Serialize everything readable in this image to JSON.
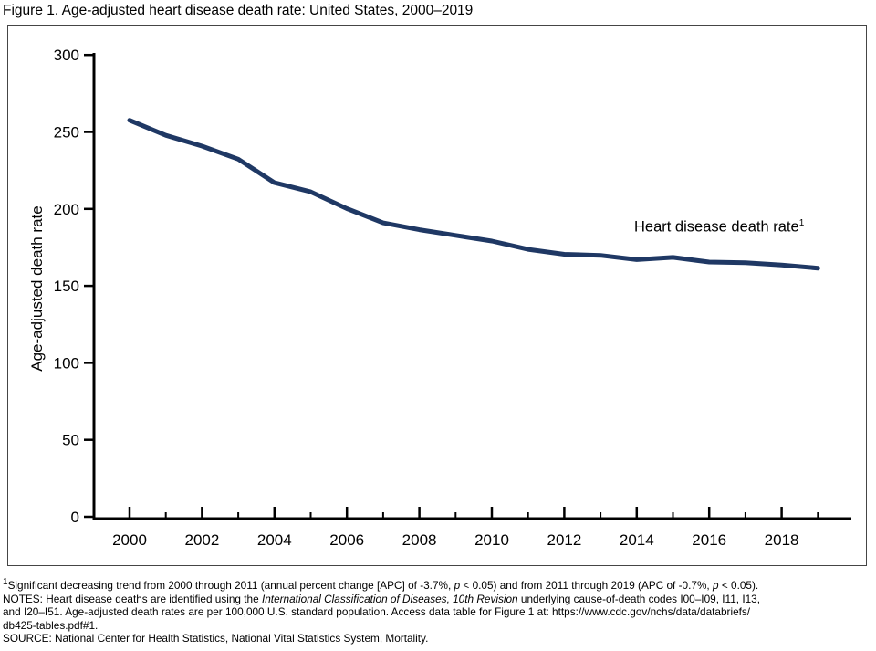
{
  "chart_data": {
    "type": "line",
    "title": "Figure 1. Age-adjusted heart disease death rate: United States, 2000–2019",
    "xlabel": "",
    "ylabel": "Age-adjusted death rate",
    "xlim": [
      2000,
      2019
    ],
    "ylim": [
      0,
      300
    ],
    "grid": false,
    "legend_position": "none",
    "y_ticks": [
      0,
      50,
      100,
      150,
      200,
      250,
      300
    ],
    "x_major_ticks": [
      2000,
      2002,
      2004,
      2006,
      2008,
      2010,
      2012,
      2014,
      2016,
      2018
    ],
    "x_minor_ticks": [
      2001,
      2003,
      2005,
      2007,
      2009,
      2011,
      2013,
      2015,
      2017,
      2019
    ],
    "series": [
      {
        "name": "Heart disease death rate",
        "color": "#1f3864",
        "x": [
          2000,
          2001,
          2002,
          2003,
          2004,
          2005,
          2006,
          2007,
          2008,
          2009,
          2010,
          2011,
          2012,
          2013,
          2014,
          2015,
          2016,
          2017,
          2018,
          2019
        ],
        "values": [
          257.6,
          247.8,
          240.8,
          232.3,
          217.0,
          211.1,
          200.2,
          190.9,
          186.5,
          182.8,
          179.1,
          173.7,
          170.5,
          169.8,
          167.0,
          168.5,
          165.5,
          165.0,
          163.6,
          161.5
        ]
      }
    ],
    "annotation": {
      "text": "Heart disease death rate",
      "sup": "1"
    }
  },
  "footnotes": {
    "line1": {
      "sup": "1",
      "t1": "Significant decreasing trend from 2000 through 2011 (annual percent change [APC] of -3.7%, ",
      "p1": "p",
      "t2": " < 0.05) and from 2011 through 2019 (APC of -0.7%, ",
      "p2": "p",
      "t3": " < 0.05)."
    },
    "line2": {
      "t1": "NOTES: Heart disease deaths are identified using the ",
      "i1": "International Classification of Diseases, 10th Revision",
      "t2": " underlying cause-of-death codes I00–I09, I11, I13,"
    },
    "line3": "and I20–I51. Age-adjusted death rates are per 100,000 U.S. standard population. Access data table for Figure 1 at: https://www.cdc.gov/nchs/data/databriefs/",
    "line4": "db425-tables.pdf#1.",
    "line5": "SOURCE: National Center for Health Statistics, National Vital Statistics System, Mortality."
  }
}
